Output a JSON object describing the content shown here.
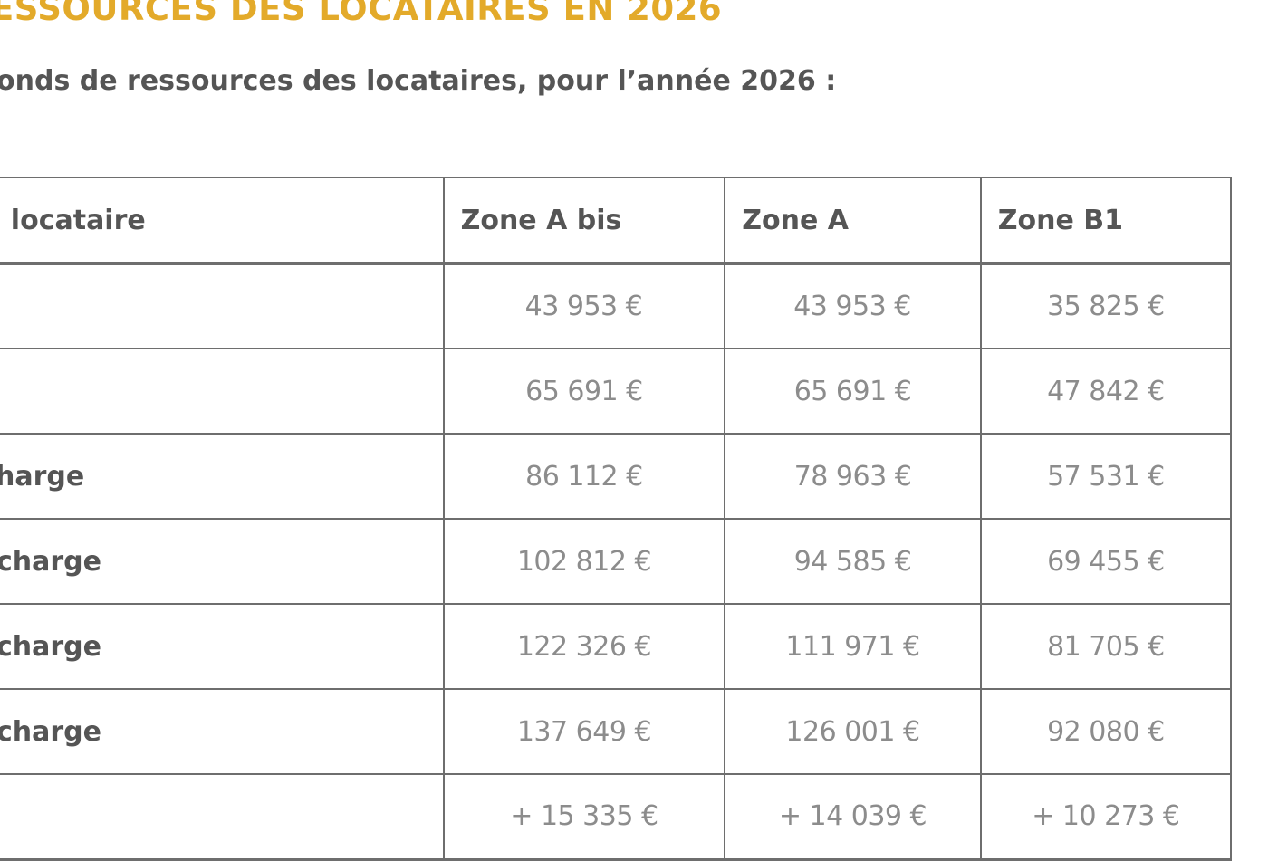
{
  "heading": "ESSOURCES DES LOCATAIRES EN 2026",
  "subtitle": "onds de ressources des locataires, pour l’année 2026 :",
  "table": {
    "headers": [
      "u locataire",
      "Zone A bis",
      "Zone A",
      "Zone B1"
    ],
    "rows": [
      {
        "label": "",
        "values": [
          "43 953 €",
          "43 953 €",
          "35 825 €"
        ]
      },
      {
        "label": "",
        "values": [
          "65 691 €",
          "65 691 €",
          "47 842 €"
        ]
      },
      {
        "label": "harge",
        "values": [
          "86 112 €",
          "78 963 €",
          "57 531 €"
        ]
      },
      {
        "label": "charge",
        "values": [
          "102 812 €",
          "94 585 €",
          "69 455 €"
        ]
      },
      {
        "label": "charge",
        "values": [
          "122 326 €",
          "111 971 €",
          "81 705 €"
        ]
      },
      {
        "label": "charge",
        "values": [
          "137 649 €",
          "126 001 €",
          "92 080 €"
        ]
      },
      {
        "label": "",
        "values": [
          "+ 15 335 €",
          "+ 14 039 €",
          "+ 10 273 €"
        ]
      }
    ]
  },
  "colors": {
    "heading": "#e3aa2a",
    "text_dark": "#555555",
    "text_value": "#8c8c8c",
    "border": "#6e6e6e"
  }
}
